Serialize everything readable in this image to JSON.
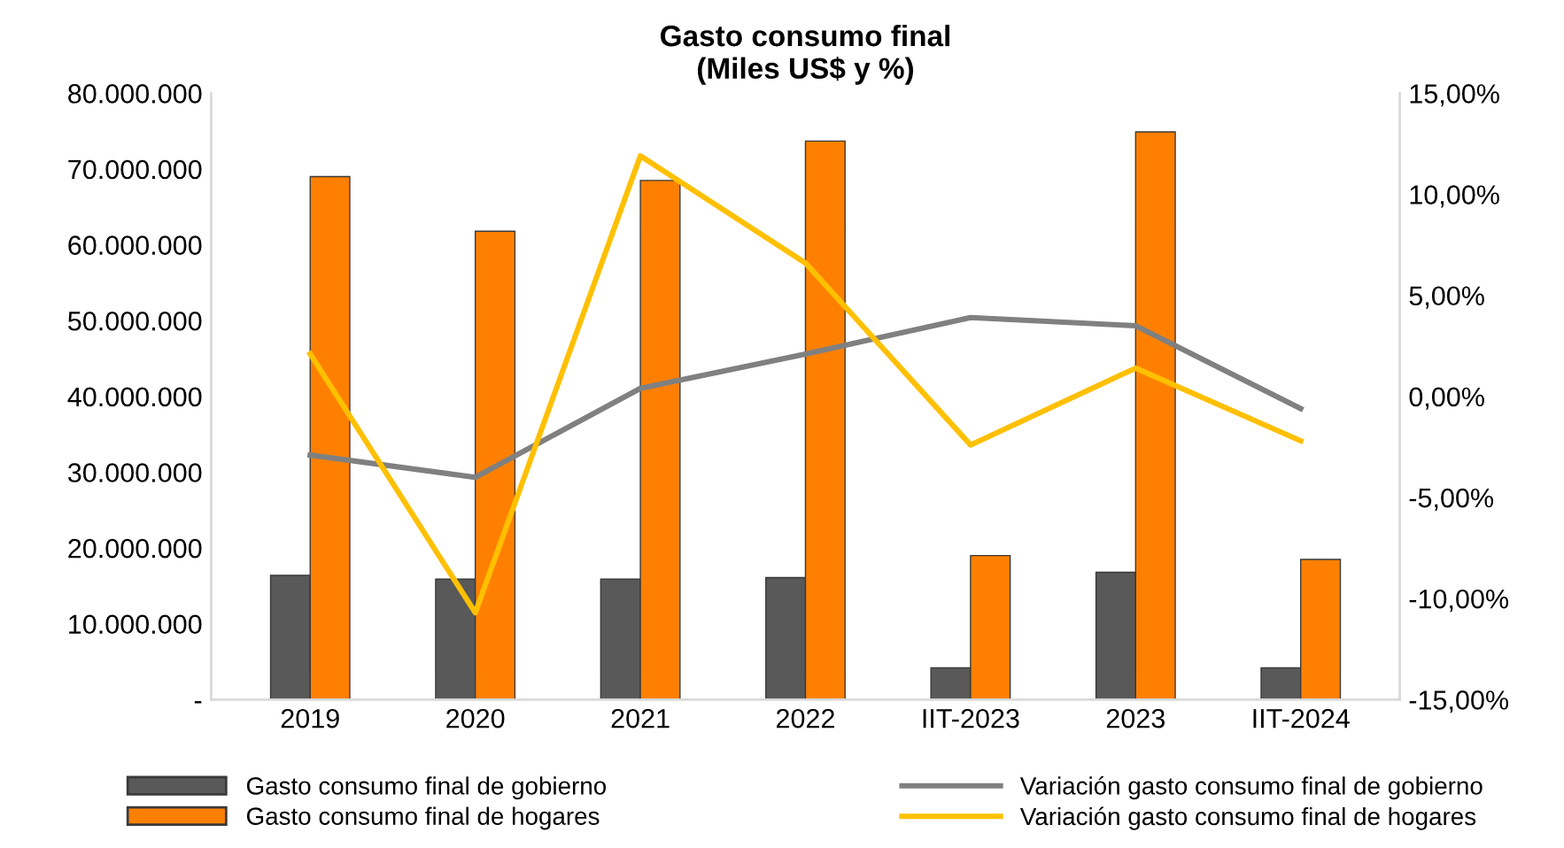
{
  "chart_data": {
    "type": "bar",
    "title": "Gasto consumo final\n(Miles US$ y %)",
    "categories": [
      "2019",
      "2020",
      "2021",
      "2022",
      "IIT-2023",
      "2023",
      "IIT-2024"
    ],
    "series": [
      {
        "name": "Gasto consumo final de gobierno",
        "color": "#595959",
        "values": [
          16400000,
          15900000,
          15900000,
          16100000,
          4200000,
          16800000,
          4200000
        ]
      },
      {
        "name": "Gasto consumo final de hogares",
        "color": "#ff8000",
        "values": [
          69000000,
          61800000,
          68500000,
          73700000,
          19000000,
          74900000,
          18500000
        ]
      },
      {
        "name": "Variación gasto consumo final de gobierno",
        "type": "line",
        "axis": "y2",
        "color": "#808080",
        "values": [
          -2.9,
          -4.0,
          0.4,
          2.1,
          3.9,
          3.5,
          -0.6
        ]
      },
      {
        "name": "Variación gasto consumo final de hogares",
        "type": "line",
        "axis": "y2",
        "color": "#ffc000",
        "values": [
          2.1,
          -10.7,
          11.9,
          6.6,
          -2.4,
          1.4,
          -2.2
        ]
      }
    ],
    "ylim": [
      0,
      80000000
    ],
    "yticks": [
      {
        "value": 0,
        "label": "-"
      },
      {
        "value": 10000000,
        "label": "10.000.000"
      },
      {
        "value": 20000000,
        "label": "20.000.000"
      },
      {
        "value": 30000000,
        "label": "30.000.000"
      },
      {
        "value": 40000000,
        "label": "40.000.000"
      },
      {
        "value": 50000000,
        "label": "50.000.000"
      },
      {
        "value": 60000000,
        "label": "60.000.000"
      },
      {
        "value": 70000000,
        "label": "70.000.000"
      },
      {
        "value": 80000000,
        "label": "80.000.000"
      }
    ],
    "y2lim": [
      -15,
      15
    ],
    "y2ticks": [
      {
        "value": -15,
        "label": "-15,00%"
      },
      {
        "value": -10,
        "label": "-10,00%"
      },
      {
        "value": -5,
        "label": "-5,00%"
      },
      {
        "value": 0,
        "label": "0,00%"
      },
      {
        "value": 5,
        "label": "5,00%"
      },
      {
        "value": 10,
        "label": "10,00%"
      },
      {
        "value": 15,
        "label": "15,00%"
      }
    ],
    "grid": false,
    "legend": "bottom",
    "marker": "none",
    "line_style": "solid"
  }
}
